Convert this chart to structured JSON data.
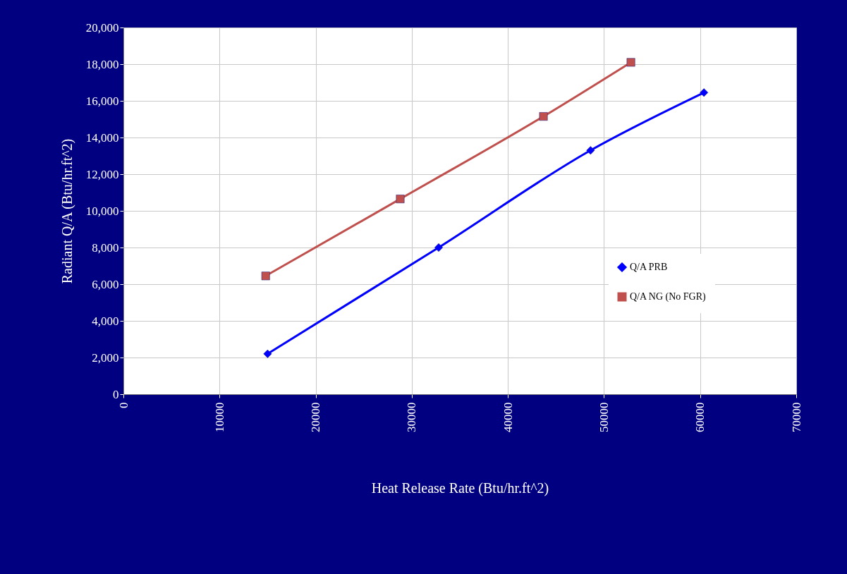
{
  "chart_data": {
    "type": "line",
    "xlabel": "Heat Release Rate (Btu/hr.ft^2)",
    "ylabel": "Radiant Q/A (Btu/hr.ft^2)",
    "xlim": [
      0,
      70000
    ],
    "xticks": [
      0,
      10000,
      20000,
      30000,
      40000,
      50000,
      60000,
      70000
    ],
    "ylim": [
      0,
      20000
    ],
    "yticks": [
      0,
      {
        "value": 2000,
        "label": "2,000"
      },
      {
        "value": 4000,
        "label": "4,000"
      },
      {
        "value": 6000,
        "label": "6,000"
      },
      {
        "value": 8000,
        "label": "8,000"
      },
      {
        "value": 10000,
        "label": "10,000"
      },
      {
        "value": 12000,
        "label": "12,000"
      },
      {
        "value": 14000,
        "label": "14,000"
      },
      {
        "value": 16000,
        "label": "16,000"
      },
      {
        "value": 18000,
        "label": "18,000"
      },
      {
        "value": 20000,
        "label": "20,000"
      }
    ],
    "grid": true,
    "legend": "bottom right",
    "series": [
      {
        "name": "Q/A PRB",
        "color": "#0000ff",
        "marker": "diamond",
        "x": [
          15000,
          32800,
          48600,
          60400
        ],
        "values": [
          2200,
          8000,
          13300,
          16450
        ]
      },
      {
        "name": "Q/A NG (No FGR)",
        "color": "#c0504d",
        "marker": "square",
        "x": [
          14800,
          28800,
          43700,
          52800
        ],
        "values": [
          6450,
          10650,
          15150,
          18100
        ]
      }
    ]
  }
}
